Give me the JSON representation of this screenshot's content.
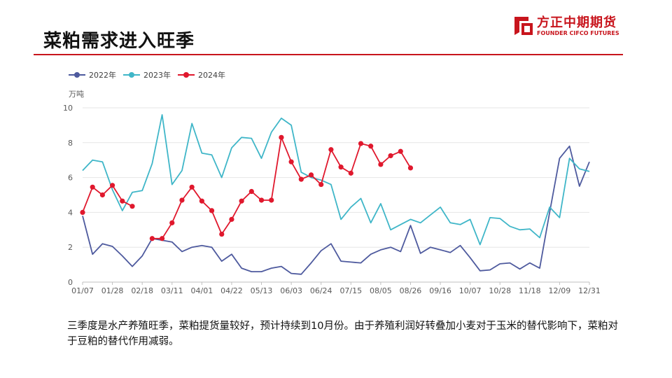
{
  "slide": {
    "title": "菜粕需求进入旺季",
    "note": "三季度是水产养殖旺季，菜粕提货量较好，预计持续到10月份。由于养殖利润好转叠加小麦对于玉米的替代影响下，菜粕对于豆粕的替代作用减弱。"
  },
  "logo": {
    "name_cn": "方正中期期货",
    "name_en": "FOUNDER CIFCO FUTURES",
    "color": "#c8151d"
  },
  "chart_data": {
    "type": "line",
    "ylabel": "万吨",
    "ylim": [
      0,
      10
    ],
    "yticks": [
      0,
      2,
      4,
      6,
      8,
      10
    ],
    "xticks": [
      "01/07",
      "01/28",
      "02/18",
      "03/11",
      "04/01",
      "04/22",
      "05/13",
      "06/03",
      "06/24",
      "07/15",
      "08/05",
      "08/26",
      "09/16",
      "10/07",
      "10/28",
      "11/18",
      "12/09",
      "12/31"
    ],
    "legend_position": "top-left",
    "grid": "horizontal",
    "series": [
      {
        "name": "2022年",
        "color": "#4e5a9e",
        "values": [
          3.8,
          1.6,
          2.2,
          2.05,
          1.5,
          0.9,
          1.5,
          2.5,
          2.4,
          2.3,
          1.75,
          2.0,
          2.1,
          2.0,
          1.2,
          1.6,
          0.8,
          0.6,
          0.6,
          0.8,
          0.9,
          0.5,
          0.45,
          1.1,
          1.8,
          2.2,
          1.2,
          1.15,
          1.1,
          1.6,
          1.85,
          2.0,
          1.75,
          3.25,
          1.65,
          2.0,
          1.85,
          1.7,
          2.1,
          1.4,
          0.65,
          0.7,
          1.05,
          1.1,
          0.75,
          1.1,
          0.8,
          4.0,
          7.1,
          7.8,
          5.5,
          6.9
        ]
      },
      {
        "name": "2023年",
        "color": "#3fb6c8",
        "values": [
          6.4,
          7.0,
          6.9,
          5.3,
          4.1,
          5.15,
          5.25,
          6.8,
          9.6,
          5.6,
          6.4,
          9.1,
          7.4,
          7.3,
          6.0,
          7.7,
          8.3,
          8.25,
          7.1,
          8.6,
          9.4,
          9.0,
          6.3,
          6.0,
          5.85,
          5.6,
          3.6,
          4.3,
          4.8,
          3.4,
          4.5,
          3.0,
          3.3,
          3.6,
          3.4,
          3.85,
          4.3,
          3.4,
          3.3,
          3.6,
          2.15,
          3.7,
          3.65,
          3.2,
          3.0,
          3.05,
          2.55,
          4.3,
          3.7,
          7.1,
          6.5,
          6.35
        ]
      },
      {
        "name": "2024年",
        "color": "#e0182d",
        "values": [
          4.0,
          5.45,
          5.0,
          5.55,
          4.65,
          4.35,
          null,
          2.5,
          2.5,
          3.4,
          4.7,
          5.45,
          4.65,
          4.1,
          2.75,
          3.6,
          4.65,
          5.2,
          4.7,
          4.7,
          8.3,
          6.9,
          5.9,
          6.15,
          5.6,
          7.6,
          6.6,
          6.25,
          7.95,
          7.8,
          6.75,
          7.25,
          7.5,
          6.55
        ]
      }
    ]
  }
}
